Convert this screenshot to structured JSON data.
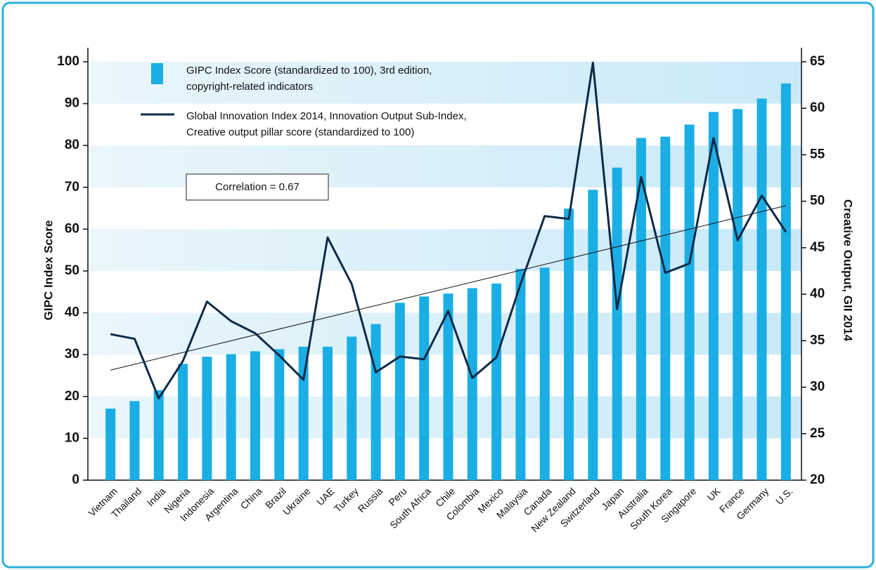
{
  "chart_data": {
    "type": "bar_line",
    "categories": [
      "Vietnam",
      "Thailand",
      "India",
      "Nigeria",
      "Indonesia",
      "Argentina",
      "China",
      "Brazil",
      "Ukraine",
      "UAE",
      "Turkey",
      "Russia",
      "Peru",
      "South Africa",
      "Chile",
      "Colombia",
      "Mexico",
      "Malaysia",
      "Canada",
      "New Zealand",
      "Switzerland",
      "Japan",
      "Australia",
      "South Korea",
      "Singapore",
      "UK",
      "France",
      "Germany",
      "U.S."
    ],
    "series": [
      {
        "name": "GIPC Index Score (standardized to 100), 3rd edition, copyright-related indicators",
        "color": "#1aaee5",
        "values": [
          17.1,
          18.9,
          21.5,
          27.8,
          29.5,
          30.1,
          30.8,
          31.3,
          31.9,
          31.9,
          34.3,
          37.3,
          42.4,
          43.9,
          44.6,
          45.9,
          47.0,
          50.5,
          50.8,
          64.9,
          69.4,
          74.7,
          81.8,
          82.1,
          85.0,
          88.0,
          88.7,
          91.2,
          94.8
        ]
      },
      {
        "name": "Global Innovation Index 2014, Innovation Output Sub-Index, Creative output pillar score (standardized to 100)",
        "color": "#0e2a47",
        "axis": "y2",
        "values": [
          35.7,
          35.2,
          28.8,
          32.8,
          39.2,
          37.1,
          35.8,
          33.4,
          30.8,
          46.1,
          41.1,
          31.6,
          33.3,
          33.0,
          38.2,
          31.0,
          33.2,
          41.1,
          48.4,
          48.1,
          64.9,
          38.4,
          52.6,
          42.3,
          43.3,
          56.8,
          45.8,
          50.6,
          46.7
        ]
      }
    ],
    "trendline": {
      "start": 26.3,
      "end": 65.6
    },
    "annotation": "Correlation = 0.67",
    "ylabel": "GIPC Index Score",
    "y2label": "Creative Output, GII 2014",
    "ylim": [
      0,
      100
    ],
    "yticks": [
      0,
      10,
      20,
      30,
      40,
      50,
      60,
      70,
      80,
      90,
      100
    ],
    "y2lim": [
      20,
      65
    ],
    "y2ticks": [
      20,
      25,
      30,
      35,
      40,
      45,
      50,
      55,
      60,
      65
    ],
    "grid": true
  }
}
